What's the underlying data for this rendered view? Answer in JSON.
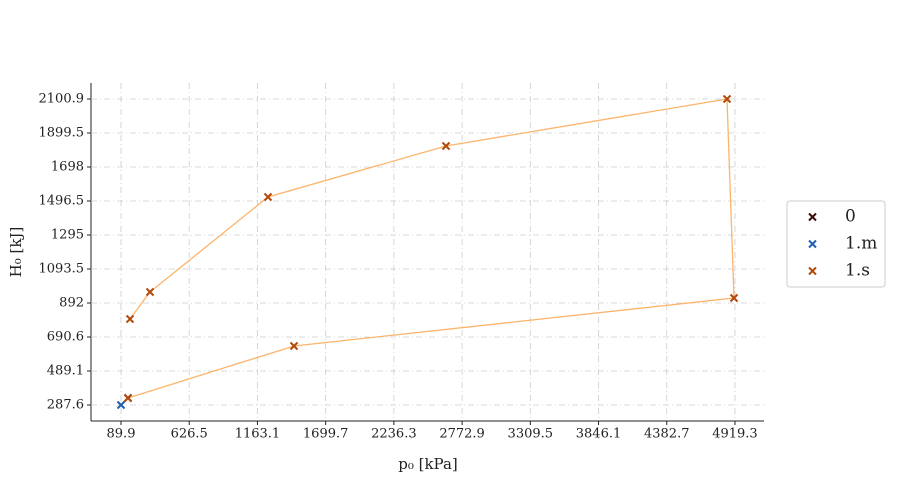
{
  "chart_data": {
    "type": "scatter",
    "xlabel": "p₀ [kPa]",
    "ylabel": "H₀ [kJ]",
    "xlim": [
      -146.1,
      5147.7
    ],
    "ylim": [
      192.8,
      2195.7
    ],
    "xticks": [
      89.9,
      626.5,
      1163.1,
      1699.7,
      2236.3,
      2772.9,
      3309.5,
      3846.1,
      4382.7,
      4919.3
    ],
    "yticks": [
      287.6,
      489.1,
      690.6,
      892.0,
      1093.5,
      1295.0,
      1496.5,
      1698.0,
      1899.5,
      2100.9
    ],
    "grid": true,
    "legend": "right",
    "series": [
      {
        "name": "0",
        "color": "#3d0a0a",
        "x": [
          145.0
        ],
        "values": [
          329.1
        ]
      },
      {
        "name": "1.m",
        "color": "#1f5fb0",
        "x": [
          89.9
        ],
        "values": [
          287.6
        ]
      },
      {
        "name": "1.s",
        "color": "#b34a0a",
        "line_color": "#fdb46b",
        "x": [
          145.0,
          1450.7,
          4911.8,
          4856.7,
          2646.3,
          1246.2,
          318.0,
          160.7
        ],
        "values": [
          329.1,
          637.2,
          921.7,
          2100.9,
          1822.4,
          1520.2,
          957.2,
          797.2
        ]
      }
    ]
  }
}
